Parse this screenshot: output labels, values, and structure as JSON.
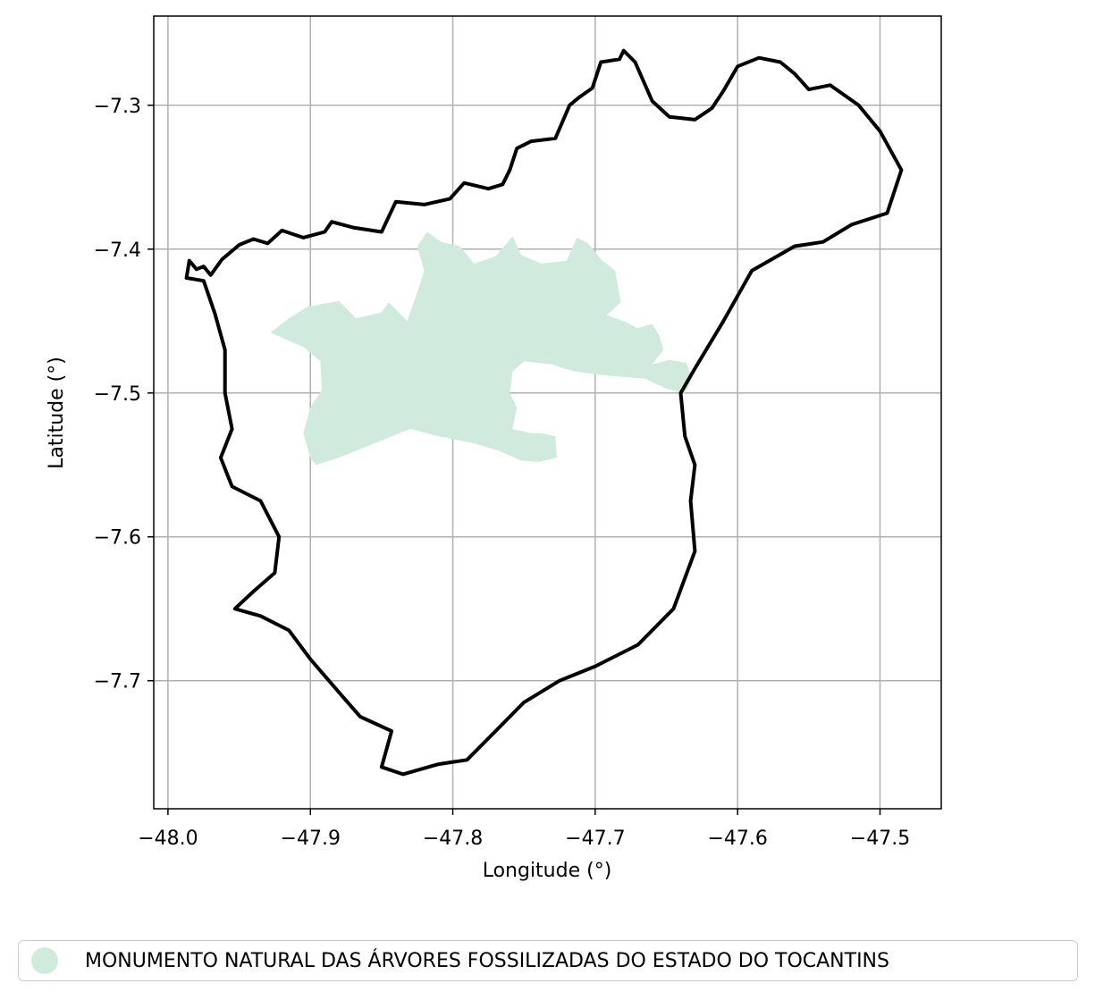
{
  "chart_data": {
    "type": "map",
    "xlabel": "Longitude (°)",
    "ylabel": "Latitude (°)",
    "xlim": [
      -48.01,
      -47.457
    ],
    "ylim": [
      -7.789,
      -7.238
    ],
    "xticks": [
      -48.0,
      -47.9,
      -47.8,
      -47.7,
      -47.6,
      -47.5
    ],
    "xtick_labels": [
      "−48.0",
      "−47.9",
      "−47.8",
      "−47.7",
      "−47.6",
      "−47.5"
    ],
    "yticks": [
      -7.3,
      -7.4,
      -7.5,
      -7.6,
      -7.7
    ],
    "ytick_labels": [
      "−7.3",
      "−7.4",
      "−7.5",
      "−7.6",
      "−7.7"
    ],
    "grid": true,
    "legend_position": "bottom",
    "legend": [
      {
        "label": "MONUMENTO NATURAL DAS ÁRVORES FOSSILIZADAS DO ESTADO DO TOCANTINS",
        "color": "#d0ebde"
      }
    ],
    "protected_area": {
      "name": "MONUMENTO NATURAL DAS ÁRVORES FOSSILIZADAS DO ESTADO DO TOCANTINS",
      "color": "#d0ebde",
      "coordinates": [
        [
          -47.928,
          -7.458
        ],
        [
          -47.915,
          -7.448
        ],
        [
          -47.902,
          -7.44
        ],
        [
          -47.88,
          -7.436
        ],
        [
          -47.868,
          -7.448
        ],
        [
          -47.85,
          -7.444
        ],
        [
          -47.845,
          -7.437
        ],
        [
          -47.832,
          -7.45
        ],
        [
          -47.825,
          -7.43
        ],
        [
          -47.82,
          -7.415
        ],
        [
          -47.825,
          -7.398
        ],
        [
          -47.818,
          -7.388
        ],
        [
          -47.808,
          -7.395
        ],
        [
          -47.795,
          -7.398
        ],
        [
          -47.785,
          -7.41
        ],
        [
          -47.77,
          -7.405
        ],
        [
          -47.758,
          -7.391
        ],
        [
          -47.752,
          -7.404
        ],
        [
          -47.738,
          -7.41
        ],
        [
          -47.72,
          -7.408
        ],
        [
          -47.713,
          -7.392
        ],
        [
          -47.705,
          -7.396
        ],
        [
          -47.695,
          -7.408
        ],
        [
          -47.686,
          -7.415
        ],
        [
          -47.682,
          -7.437
        ],
        [
          -47.692,
          -7.446
        ],
        [
          -47.68,
          -7.45
        ],
        [
          -47.67,
          -7.455
        ],
        [
          -47.66,
          -7.452
        ],
        [
          -47.655,
          -7.46
        ],
        [
          -47.652,
          -7.47
        ],
        [
          -47.66,
          -7.48
        ],
        [
          -47.648,
          -7.477
        ],
        [
          -47.636,
          -7.479
        ],
        [
          -47.632,
          -7.49
        ],
        [
          -47.637,
          -7.5
        ],
        [
          -47.65,
          -7.497
        ],
        [
          -47.665,
          -7.49
        ],
        [
          -47.69,
          -7.488
        ],
        [
          -47.715,
          -7.485
        ],
        [
          -47.731,
          -7.48
        ],
        [
          -47.75,
          -7.478
        ],
        [
          -47.758,
          -7.485
        ],
        [
          -47.76,
          -7.5
        ],
        [
          -47.755,
          -7.51
        ],
        [
          -47.758,
          -7.525
        ],
        [
          -47.745,
          -7.528
        ],
        [
          -47.738,
          -7.528
        ],
        [
          -47.728,
          -7.53
        ],
        [
          -47.727,
          -7.545
        ],
        [
          -47.74,
          -7.548
        ],
        [
          -47.752,
          -7.547
        ],
        [
          -47.768,
          -7.54
        ],
        [
          -47.785,
          -7.535
        ],
        [
          -47.81,
          -7.53
        ],
        [
          -47.83,
          -7.525
        ],
        [
          -47.855,
          -7.535
        ],
        [
          -47.88,
          -7.545
        ],
        [
          -47.896,
          -7.55
        ],
        [
          -47.9,
          -7.545
        ],
        [
          -47.905,
          -7.528
        ],
        [
          -47.9,
          -7.51
        ],
        [
          -47.892,
          -7.498
        ],
        [
          -47.893,
          -7.478
        ],
        [
          -47.905,
          -7.468
        ]
      ]
    },
    "boundary": {
      "color": "#000000",
      "coordinates": [
        [
          -47.987,
          -7.42
        ],
        [
          -47.985,
          -7.408
        ],
        [
          -47.98,
          -7.414
        ],
        [
          -47.975,
          -7.412
        ],
        [
          -47.97,
          -7.418
        ],
        [
          -47.962,
          -7.407
        ],
        [
          -47.95,
          -7.397
        ],
        [
          -47.94,
          -7.393
        ],
        [
          -47.93,
          -7.396
        ],
        [
          -47.92,
          -7.387
        ],
        [
          -47.905,
          -7.392
        ],
        [
          -47.89,
          -7.388
        ],
        [
          -47.885,
          -7.381
        ],
        [
          -47.87,
          -7.385
        ],
        [
          -47.85,
          -7.388
        ],
        [
          -47.84,
          -7.367
        ],
        [
          -47.82,
          -7.369
        ],
        [
          -47.802,
          -7.365
        ],
        [
          -47.792,
          -7.354
        ],
        [
          -47.775,
          -7.358
        ],
        [
          -47.765,
          -7.355
        ],
        [
          -47.76,
          -7.345
        ],
        [
          -47.755,
          -7.33
        ],
        [
          -47.745,
          -7.325
        ],
        [
          -47.728,
          -7.323
        ],
        [
          -47.718,
          -7.3
        ],
        [
          -47.712,
          -7.295
        ],
        [
          -47.702,
          -7.288
        ],
        [
          -47.696,
          -7.27
        ],
        [
          -47.683,
          -7.268
        ],
        [
          -47.68,
          -7.262
        ],
        [
          -47.672,
          -7.27
        ],
        [
          -47.66,
          -7.297
        ],
        [
          -47.648,
          -7.308
        ],
        [
          -47.63,
          -7.31
        ],
        [
          -47.618,
          -7.302
        ],
        [
          -47.61,
          -7.29
        ],
        [
          -47.6,
          -7.273
        ],
        [
          -47.585,
          -7.267
        ],
        [
          -47.57,
          -7.27
        ],
        [
          -47.56,
          -7.278
        ],
        [
          -47.55,
          -7.289
        ],
        [
          -47.535,
          -7.286
        ],
        [
          -47.515,
          -7.3
        ],
        [
          -47.5,
          -7.318
        ],
        [
          -47.485,
          -7.345
        ],
        [
          -47.495,
          -7.375
        ],
        [
          -47.52,
          -7.383
        ],
        [
          -47.54,
          -7.395
        ],
        [
          -47.56,
          -7.398
        ],
        [
          -47.59,
          -7.415
        ],
        [
          -47.61,
          -7.45
        ],
        [
          -47.63,
          -7.483
        ],
        [
          -47.64,
          -7.5
        ],
        [
          -47.637,
          -7.53
        ],
        [
          -47.63,
          -7.55
        ],
        [
          -47.633,
          -7.575
        ],
        [
          -47.63,
          -7.61
        ],
        [
          -47.645,
          -7.65
        ],
        [
          -47.67,
          -7.675
        ],
        [
          -47.7,
          -7.69
        ],
        [
          -47.725,
          -7.7
        ],
        [
          -47.75,
          -7.715
        ],
        [
          -47.77,
          -7.735
        ],
        [
          -47.79,
          -7.755
        ],
        [
          -47.81,
          -7.758
        ],
        [
          -47.835,
          -7.765
        ],
        [
          -47.85,
          -7.76
        ],
        [
          -47.843,
          -7.735
        ],
        [
          -47.865,
          -7.725
        ],
        [
          -47.88,
          -7.708
        ],
        [
          -47.9,
          -7.685
        ],
        [
          -47.915,
          -7.665
        ],
        [
          -47.935,
          -7.655
        ],
        [
          -47.953,
          -7.65
        ],
        [
          -47.94,
          -7.638
        ],
        [
          -47.925,
          -7.625
        ],
        [
          -47.922,
          -7.6
        ],
        [
          -47.935,
          -7.575
        ],
        [
          -47.955,
          -7.565
        ],
        [
          -47.963,
          -7.545
        ],
        [
          -47.955,
          -7.525
        ],
        [
          -47.96,
          -7.5
        ],
        [
          -47.96,
          -7.47
        ],
        [
          -47.967,
          -7.445
        ],
        [
          -47.975,
          -7.422
        ],
        [
          -47.987,
          -7.42
        ]
      ]
    }
  }
}
